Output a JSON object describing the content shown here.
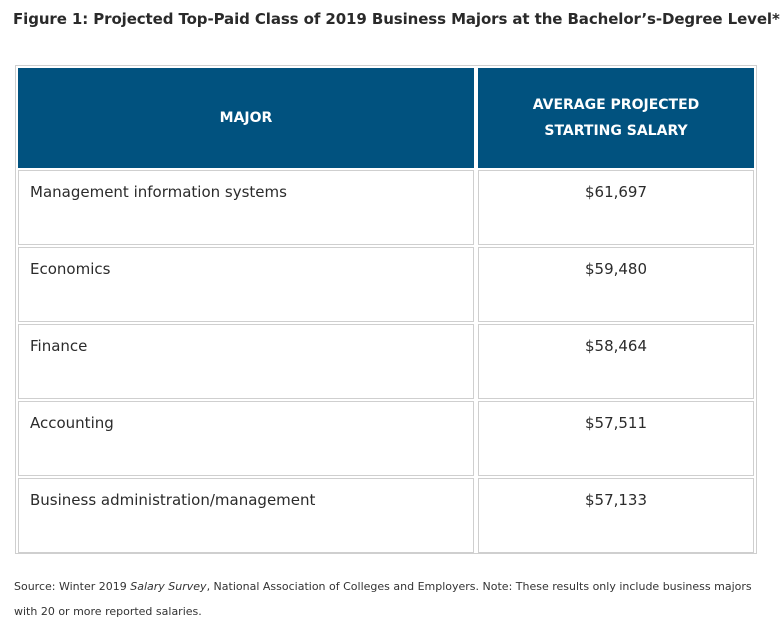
{
  "figure": {
    "title": "Figure 1: Projected Top-Paid Class of 2019 Business Majors at the Bachelor’s-Degree Level*"
  },
  "chart_data": {
    "type": "table",
    "title": "Figure 1: Projected Top-Paid Class of 2019 Business Majors at the Bachelor’s-Degree Level*",
    "columns": [
      "MAJOR",
      "AVERAGE PROJECTED STARTING SALARY"
    ],
    "rows": [
      {
        "major": "Management information systems",
        "salary": "$61,697"
      },
      {
        "major": "Economics",
        "salary": "$59,480"
      },
      {
        "major": "Finance",
        "salary": "$58,464"
      },
      {
        "major": "Accounting",
        "salary": "$57,511"
      },
      {
        "major": "Business administration/management",
        "salary": "$57,133"
      }
    ],
    "header_color": "#01527f"
  },
  "source": {
    "prefix": "Source: Winter 2019 ",
    "italic": "Salary Survey",
    "suffix": ", National Association of Colleges and Employers. Note: These results only include business majors with 20 or more reported salaries."
  }
}
